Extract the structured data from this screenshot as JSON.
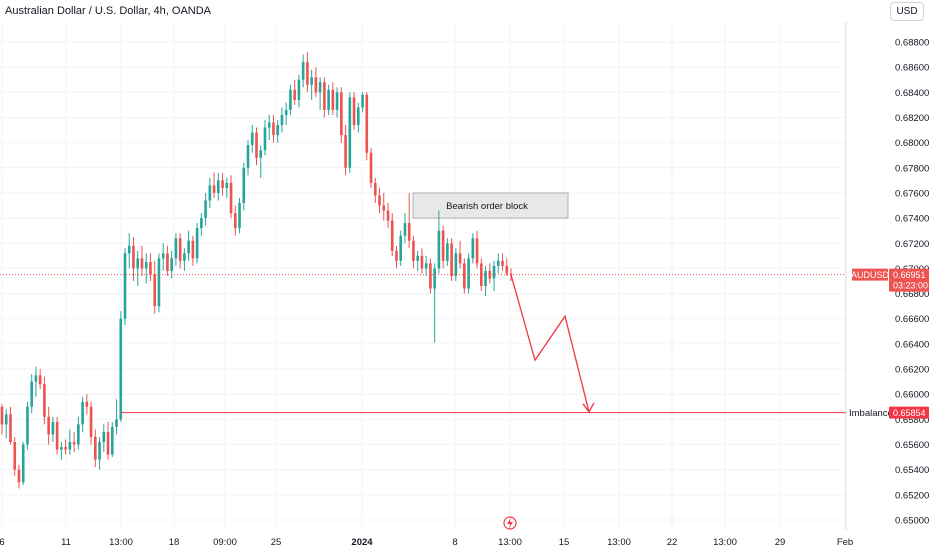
{
  "header": {
    "symbol_title": "Australian Dollar / U.S. Dollar, 4h, OANDA",
    "currency_button": "USD"
  },
  "colors": {
    "up": "#26a69a",
    "down": "#ef5350",
    "annotation": "#f23645",
    "grid": "#f0f3fa",
    "zone_fill": "#e8e8e8",
    "zone_border": "#9e9e9e"
  },
  "price_axis": {
    "ticks": [
      "0.68800",
      "0.68600",
      "0.68400",
      "0.68200",
      "0.68000",
      "0.67800",
      "0.67600",
      "0.67400",
      "0.67200",
      "0.67000",
      "0.66800",
      "0.66600",
      "0.66400",
      "0.66200",
      "0.66000",
      "0.65800",
      "0.65600",
      "0.65400",
      "0.65200",
      "0.65000"
    ],
    "current_price_tag": {
      "symbol": "AUDUSD",
      "price": "0.66951",
      "countdown": "03:23:00"
    },
    "imbalance_tag": {
      "label": "Imbalance",
      "price": "0.65854"
    }
  },
  "time_axis": {
    "labels": [
      "6",
      "11",
      "13:00",
      "18",
      "09:00",
      "25",
      "2024",
      "8",
      "13:00",
      "15",
      "13:00",
      "22",
      "13:00",
      "29",
      "Feb"
    ]
  },
  "annotations": {
    "order_block_label": "Bearish order block"
  },
  "chart_data": {
    "type": "candlestick",
    "title": "Australian Dollar / U.S. Dollar, 4h, OANDA",
    "ylim": [
      0.6495,
      0.6895
    ],
    "candles": [
      [
        0.659,
        0.6592,
        0.6568,
        0.6576
      ],
      [
        0.6576,
        0.6588,
        0.6565,
        0.6584
      ],
      [
        0.6584,
        0.659,
        0.656,
        0.6562
      ],
      [
        0.6562,
        0.6566,
        0.6535,
        0.654
      ],
      [
        0.654,
        0.6544,
        0.6525,
        0.653
      ],
      [
        0.653,
        0.6562,
        0.6528,
        0.656
      ],
      [
        0.656,
        0.6594,
        0.6556,
        0.659
      ],
      [
        0.659,
        0.6616,
        0.6585,
        0.661
      ],
      [
        0.661,
        0.6622,
        0.6598,
        0.6615
      ],
      [
        0.6615,
        0.662,
        0.6604,
        0.6608
      ],
      [
        0.6608,
        0.6614,
        0.6576,
        0.6582
      ],
      [
        0.6582,
        0.659,
        0.656,
        0.6568
      ],
      [
        0.6568,
        0.6582,
        0.6562,
        0.6578
      ],
      [
        0.6578,
        0.6582,
        0.6552,
        0.6556
      ],
      [
        0.6556,
        0.6562,
        0.6548,
        0.6558
      ],
      [
        0.6558,
        0.6564,
        0.6552,
        0.6556
      ],
      [
        0.6556,
        0.6572,
        0.6552,
        0.6562
      ],
      [
        0.6562,
        0.657,
        0.6554,
        0.656
      ],
      [
        0.656,
        0.6582,
        0.6556,
        0.6576
      ],
      [
        0.6576,
        0.6598,
        0.657,
        0.6594
      ],
      [
        0.6594,
        0.66,
        0.6584,
        0.659
      ],
      [
        0.659,
        0.6594,
        0.656,
        0.6566
      ],
      [
        0.6566,
        0.6572,
        0.6542,
        0.6548
      ],
      [
        0.6548,
        0.6566,
        0.654,
        0.6562
      ],
      [
        0.6562,
        0.6576,
        0.6554,
        0.657
      ],
      [
        0.657,
        0.6578,
        0.6548,
        0.6552
      ],
      [
        0.6552,
        0.6578,
        0.655,
        0.6574
      ],
      [
        0.6574,
        0.6596,
        0.6568,
        0.658
      ],
      [
        0.658,
        0.6666,
        0.6578,
        0.666
      ],
      [
        0.666,
        0.6716,
        0.6655,
        0.6712
      ],
      [
        0.6712,
        0.6728,
        0.67,
        0.6718
      ],
      [
        0.6718,
        0.6725,
        0.669,
        0.67
      ],
      [
        0.67,
        0.6714,
        0.6686,
        0.6708
      ],
      [
        0.6708,
        0.6718,
        0.6694,
        0.67
      ],
      [
        0.67,
        0.6712,
        0.6688,
        0.6705
      ],
      [
        0.6705,
        0.6712,
        0.669,
        0.6695
      ],
      [
        0.6695,
        0.6706,
        0.6664,
        0.667
      ],
      [
        0.667,
        0.6712,
        0.6665,
        0.6708
      ],
      [
        0.6708,
        0.672,
        0.6698,
        0.6712
      ],
      [
        0.6712,
        0.6718,
        0.6694,
        0.6698
      ],
      [
        0.6698,
        0.6714,
        0.6692,
        0.6708
      ],
      [
        0.6708,
        0.6728,
        0.6702,
        0.6724
      ],
      [
        0.6724,
        0.6728,
        0.67,
        0.6706
      ],
      [
        0.6706,
        0.6716,
        0.6698,
        0.6712
      ],
      [
        0.6712,
        0.673,
        0.6706,
        0.6722
      ],
      [
        0.6722,
        0.6726,
        0.6702,
        0.6708
      ],
      [
        0.6708,
        0.6736,
        0.6704,
        0.6732
      ],
      [
        0.6732,
        0.6744,
        0.6726,
        0.674
      ],
      [
        0.674,
        0.676,
        0.6734,
        0.6754
      ],
      [
        0.6754,
        0.6772,
        0.6748,
        0.6766
      ],
      [
        0.6766,
        0.6776,
        0.6756,
        0.676
      ],
      [
        0.676,
        0.6776,
        0.6754,
        0.677
      ],
      [
        0.677,
        0.6776,
        0.6758,
        0.6764
      ],
      [
        0.6764,
        0.6772,
        0.6756,
        0.6768
      ],
      [
        0.6768,
        0.6774,
        0.674,
        0.6744
      ],
      [
        0.6744,
        0.675,
        0.6726,
        0.6732
      ],
      [
        0.6732,
        0.6756,
        0.6728,
        0.6752
      ],
      [
        0.6752,
        0.6784,
        0.6746,
        0.678
      ],
      [
        0.678,
        0.6802,
        0.6774,
        0.6798
      ],
      [
        0.6798,
        0.6814,
        0.6792,
        0.6808
      ],
      [
        0.6808,
        0.6812,
        0.6782,
        0.6788
      ],
      [
        0.6788,
        0.6798,
        0.6772,
        0.6794
      ],
      [
        0.6794,
        0.6818,
        0.679,
        0.6812
      ],
      [
        0.6812,
        0.6822,
        0.6802,
        0.6816
      ],
      [
        0.6816,
        0.6822,
        0.68,
        0.6806
      ],
      [
        0.6806,
        0.6818,
        0.68,
        0.6814
      ],
      [
        0.6814,
        0.6828,
        0.6808,
        0.6822
      ],
      [
        0.6822,
        0.6832,
        0.6814,
        0.6826
      ],
      [
        0.6826,
        0.6846,
        0.6822,
        0.6842
      ],
      [
        0.6842,
        0.685,
        0.683,
        0.6834
      ],
      [
        0.6834,
        0.6854,
        0.6828,
        0.685
      ],
      [
        0.685,
        0.687,
        0.6844,
        0.6864
      ],
      [
        0.6864,
        0.6872,
        0.684,
        0.6846
      ],
      [
        0.6846,
        0.6858,
        0.6834,
        0.6852
      ],
      [
        0.6852,
        0.686,
        0.6836,
        0.684
      ],
      [
        0.684,
        0.6852,
        0.6826,
        0.6848
      ],
      [
        0.6848,
        0.6852,
        0.682,
        0.6826
      ],
      [
        0.6826,
        0.6846,
        0.6822,
        0.6842
      ],
      [
        0.6842,
        0.6848,
        0.6822,
        0.6826
      ],
      [
        0.6826,
        0.6844,
        0.682,
        0.684
      ],
      [
        0.684,
        0.6844,
        0.68,
        0.6806
      ],
      [
        0.6806,
        0.6814,
        0.6774,
        0.678
      ],
      [
        0.678,
        0.684,
        0.6776,
        0.6836
      ],
      [
        0.6836,
        0.684,
        0.681,
        0.6814
      ],
      [
        0.6814,
        0.6832,
        0.6808,
        0.6828
      ],
      [
        0.6828,
        0.684,
        0.6824,
        0.6838
      ],
      [
        0.6838,
        0.684,
        0.6786,
        0.6792
      ],
      [
        0.6792,
        0.6796,
        0.6764,
        0.6768
      ],
      [
        0.6768,
        0.6772,
        0.6752,
        0.6758
      ],
      [
        0.6758,
        0.6764,
        0.6744,
        0.675
      ],
      [
        0.675,
        0.676,
        0.6738,
        0.6746
      ],
      [
        0.6746,
        0.6752,
        0.6732,
        0.6738
      ],
      [
        0.6738,
        0.6744,
        0.671,
        0.6714
      ],
      [
        0.6714,
        0.6718,
        0.67,
        0.6706
      ],
      [
        0.6706,
        0.673,
        0.6702,
        0.6726
      ],
      [
        0.6726,
        0.6744,
        0.672,
        0.6736
      ],
      [
        0.6736,
        0.676,
        0.6716,
        0.6722
      ],
      [
        0.6722,
        0.6726,
        0.67,
        0.6706
      ],
      [
        0.6706,
        0.6714,
        0.6698,
        0.671
      ],
      [
        0.671,
        0.6716,
        0.6696,
        0.67
      ],
      [
        0.67,
        0.671,
        0.6694,
        0.6704
      ],
      [
        0.6704,
        0.6708,
        0.668,
        0.6684
      ],
      [
        0.6684,
        0.6704,
        0.6641,
        0.67
      ],
      [
        0.67,
        0.6746,
        0.6696,
        0.673
      ],
      [
        0.673,
        0.6734,
        0.67,
        0.6706
      ],
      [
        0.6706,
        0.6724,
        0.6702,
        0.672
      ],
      [
        0.672,
        0.6724,
        0.669,
        0.6694
      ],
      [
        0.6694,
        0.6716,
        0.669,
        0.6712
      ],
      [
        0.6712,
        0.6722,
        0.67,
        0.6704
      ],
      [
        0.6704,
        0.6708,
        0.668,
        0.6684
      ],
      [
        0.6684,
        0.6712,
        0.668,
        0.6708
      ],
      [
        0.6708,
        0.6728,
        0.6704,
        0.6724
      ],
      [
        0.6724,
        0.673,
        0.67,
        0.6704
      ],
      [
        0.6704,
        0.6708,
        0.6682,
        0.6686
      ],
      [
        0.6686,
        0.6702,
        0.6678,
        0.6698
      ],
      [
        0.6698,
        0.6704,
        0.6688,
        0.6692
      ],
      [
        0.6692,
        0.6706,
        0.6682,
        0.6702
      ],
      [
        0.6702,
        0.6712,
        0.6696,
        0.6706
      ],
      [
        0.6706,
        0.6712,
        0.6698,
        0.6702
      ],
      [
        0.6702,
        0.6708,
        0.6694,
        0.6696
      ],
      [
        0.6696,
        0.67,
        0.669,
        0.6695
      ]
    ],
    "current_price": 0.66951,
    "imbalance_level": 0.65854,
    "order_block": {
      "top": 0.676,
      "bottom": 0.674,
      "label": "Bearish order block"
    },
    "projection_path": [
      {
        "x": "after last candle",
        "y": 0.6695
      },
      {
        "x": "13:00 (15)",
        "y": 0.6627
      },
      {
        "x": "15",
        "y": 0.6662
      },
      {
        "x": "near 13:00",
        "y": 0.6585
      }
    ]
  }
}
